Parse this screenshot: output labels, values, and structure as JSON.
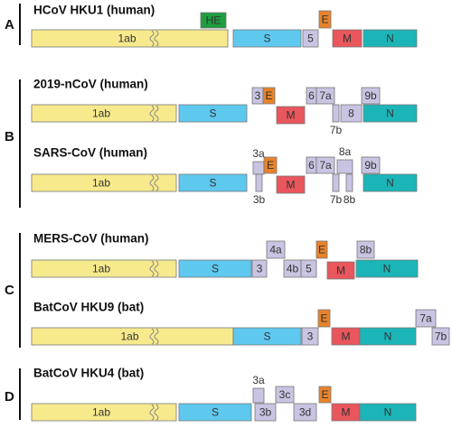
{
  "panels": [
    {
      "label": "A",
      "genomes": [
        {
          "title": "HCoV HKU1 (human)",
          "genes": [
            "1ab",
            "HE",
            "S",
            "5",
            "E",
            "M",
            "N"
          ]
        }
      ]
    },
    {
      "label": "B",
      "genomes": [
        {
          "title": "2019-nCoV (human)",
          "genes": [
            "1ab",
            "S",
            "3",
            "E",
            "M",
            "6",
            "7a",
            "7b",
            "8",
            "N",
            "9b"
          ]
        },
        {
          "title": "SARS-CoV (human)",
          "genes": [
            "1ab",
            "S",
            "3a",
            "3b",
            "E",
            "M",
            "6",
            "7a",
            "7b",
            "8a",
            "8b",
            "N",
            "9b"
          ]
        }
      ]
    },
    {
      "label": "C",
      "genomes": [
        {
          "title": "MERS-CoV (human)",
          "genes": [
            "1ab",
            "S",
            "3",
            "4a",
            "4b",
            "5",
            "E",
            "M",
            "N",
            "8b"
          ]
        },
        {
          "title": "BatCoV HKU9 (bat)",
          "genes": [
            "1ab",
            "S",
            "3",
            "E",
            "M",
            "N",
            "7a",
            "7b"
          ]
        }
      ]
    },
    {
      "label": "D",
      "genomes": [
        {
          "title": "BatCoV HKU4 (bat)",
          "genes": [
            "1ab",
            "S",
            "3a",
            "3b",
            "3c",
            "3d",
            "E",
            "M",
            "N"
          ]
        }
      ]
    }
  ]
}
